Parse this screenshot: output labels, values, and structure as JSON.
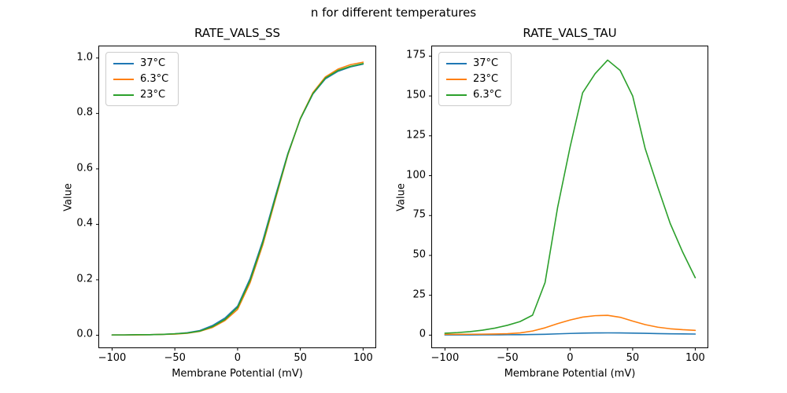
{
  "figure": {
    "title": "n for different temperatures",
    "background": "#ffffff",
    "text_color": "#000000"
  },
  "chart_data": [
    {
      "type": "line",
      "title": "RATE_VALS_SS",
      "xlabel": "Membrane Potential (mV)",
      "ylabel": "Value",
      "grid": false,
      "legend_position": "upper-left",
      "x": [
        -100,
        -90,
        -80,
        -70,
        -60,
        -50,
        -40,
        -30,
        -20,
        -10,
        0,
        10,
        20,
        30,
        40,
        50,
        60,
        70,
        80,
        90,
        100
      ],
      "series": [
        {
          "name": "37°C",
          "color": "#1f77b4",
          "values": [
            0.001,
            0.001,
            0.002,
            0.002,
            0.003,
            0.005,
            0.009,
            0.017,
            0.035,
            0.062,
            0.105,
            0.205,
            0.34,
            0.5,
            0.655,
            0.78,
            0.87,
            0.925,
            0.952,
            0.968,
            0.978
          ]
        },
        {
          "name": "6.3°C",
          "color": "#ff7f0e",
          "values": [
            0.001,
            0.001,
            0.001,
            0.002,
            0.003,
            0.004,
            0.007,
            0.014,
            0.028,
            0.053,
            0.093,
            0.19,
            0.325,
            0.488,
            0.65,
            0.782,
            0.875,
            0.932,
            0.96,
            0.976,
            0.985
          ]
        },
        {
          "name": "23°C",
          "color": "#2ca02c",
          "values": [
            0.001,
            0.001,
            0.002,
            0.002,
            0.003,
            0.005,
            0.008,
            0.015,
            0.031,
            0.057,
            0.1,
            0.198,
            0.333,
            0.494,
            0.652,
            0.781,
            0.872,
            0.928,
            0.955,
            0.97,
            0.98
          ]
        }
      ],
      "xlim": [
        -110.3,
        109.8
      ],
      "ylim": [
        -0.044,
        1.042
      ],
      "xticks": [
        -100,
        -50,
        0,
        50,
        100
      ],
      "xtick_labels": [
        "−100",
        "−50",
        "0",
        "50",
        "100"
      ],
      "yticks": [
        0,
        0.2,
        0.4,
        0.6,
        0.8,
        1.0
      ],
      "ytick_labels": [
        "0.0",
        "0.2",
        "0.4",
        "0.6",
        "0.8",
        "1.0"
      ]
    },
    {
      "type": "line",
      "title": "RATE_VALS_TAU",
      "xlabel": "Membrane Potential (mV)",
      "ylabel": "Value",
      "grid": false,
      "legend_position": "upper-left",
      "x": [
        -100,
        -90,
        -80,
        -70,
        -60,
        -50,
        -40,
        -30,
        -20,
        -10,
        0,
        10,
        20,
        30,
        40,
        50,
        60,
        70,
        80,
        90,
        100
      ],
      "series": [
        {
          "name": "37°C",
          "color": "#1f77b4",
          "values": [
            0.15,
            0.16,
            0.17,
            0.19,
            0.21,
            0.25,
            0.3,
            0.4,
            0.55,
            0.8,
            1.05,
            1.25,
            1.38,
            1.42,
            1.38,
            1.28,
            1.13,
            0.98,
            0.85,
            0.75,
            0.68
          ]
        },
        {
          "name": "23°C",
          "color": "#ff7f0e",
          "values": [
            0.5,
            0.52,
            0.56,
            0.62,
            0.72,
            0.9,
            1.4,
            2.6,
            4.6,
            7.2,
            9.5,
            11.3,
            12.2,
            12.4,
            11.2,
            8.8,
            6.6,
            5.0,
            4.0,
            3.4,
            3.0
          ]
        },
        {
          "name": "6.3°C",
          "color": "#2ca02c",
          "values": [
            1.2,
            1.6,
            2.2,
            3.1,
            4.4,
            6.2,
            8.5,
            12.5,
            33,
            80,
            118,
            152,
            164,
            172.5,
            166,
            150,
            117,
            93,
            70,
            52,
            36
          ]
        }
      ],
      "xlim": [
        -110.3,
        109.8
      ],
      "ylim": [
        -7.7,
        181.1
      ],
      "xticks": [
        -100,
        -50,
        0,
        50,
        100
      ],
      "xtick_labels": [
        "−100",
        "−50",
        "0",
        "50",
        "100"
      ],
      "yticks": [
        0,
        25,
        50,
        75,
        100,
        125,
        150,
        175
      ],
      "ytick_labels": [
        "0",
        "25",
        "50",
        "75",
        "100",
        "125",
        "150",
        "175"
      ]
    }
  ]
}
